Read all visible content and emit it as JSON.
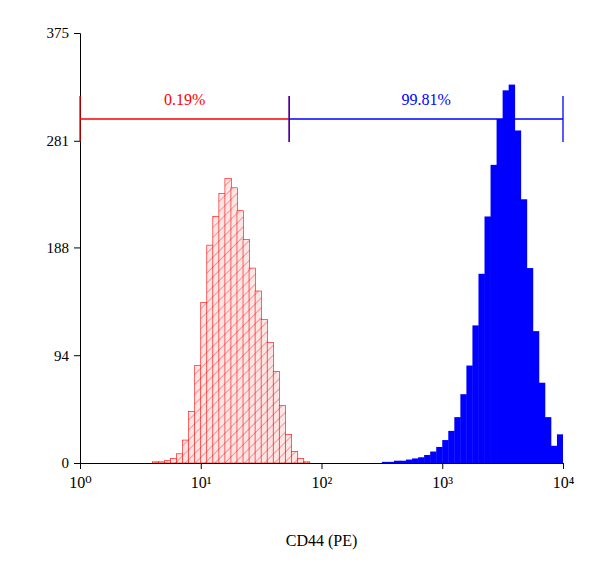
{
  "chart_data": {
    "type": "histogram",
    "x_label": "CD44 (PE)",
    "log": "x",
    "grid": false,
    "xlim": [
      1,
      10000
    ],
    "xticks": [
      {
        "value": 1,
        "label": "10⁰"
      },
      {
        "value": 10,
        "label": "10¹"
      },
      {
        "value": 100,
        "label": "10²"
      },
      {
        "value": 1000,
        "label": "10³"
      },
      {
        "value": 10000,
        "label": "10⁴"
      }
    ],
    "ylim": [
      0,
      375
    ],
    "yticks": [
      0,
      94,
      188,
      281,
      375
    ],
    "bins": [
      1,
      1.122,
      1.259,
      1.413,
      1.585,
      1.778,
      1.995,
      2.239,
      2.512,
      2.818,
      3.162,
      3.548,
      3.981,
      4.467,
      5.012,
      5.623,
      6.31,
      7.079,
      7.943,
      8.913,
      10,
      11.22,
      12.59,
      14.13,
      15.85,
      17.78,
      19.95,
      22.39,
      25.12,
      28.18,
      31.62,
      35.48,
      39.81,
      44.67,
      50.12,
      56.23,
      63.1,
      70.79,
      79.43,
      89.13,
      100,
      112.2,
      125.9,
      141.3,
      158.5,
      177.8,
      199.5,
      223.9,
      251.2,
      281.8,
      316.2,
      354.8,
      398.1,
      446.7,
      501.2,
      562.3,
      631,
      707.9,
      794.3,
      891.3,
      1000,
      1122,
      1259,
      1413,
      1585,
      1778,
      1995,
      2239,
      2512,
      2818,
      3162,
      3548,
      3981,
      4467,
      5012,
      5623,
      6310,
      7079,
      7943,
      8913,
      10000
    ],
    "series": [
      {
        "color": "#ff0000",
        "marker": "hatch",
        "values": [
          0,
          0,
          0,
          0,
          0,
          0,
          0,
          0,
          0,
          0,
          0,
          0,
          1,
          1,
          2,
          4,
          8,
          20,
          45,
          85,
          140,
          190,
          215,
          235,
          248,
          240,
          220,
          195,
          170,
          150,
          125,
          105,
          80,
          50,
          25,
          10,
          4,
          1,
          0,
          0,
          0,
          0,
          0,
          0,
          0,
          0,
          0,
          0,
          0,
          0,
          0,
          0,
          0,
          0,
          0,
          0,
          0,
          0,
          0,
          0,
          0,
          0,
          0,
          0,
          0,
          0,
          0,
          0,
          0,
          0,
          0,
          0,
          0,
          0,
          0,
          0,
          0,
          0,
          0,
          0
        ]
      },
      {
        "color": "#0000ff",
        "marker": "solid",
        "values": [
          0,
          0,
          0,
          0,
          0,
          0,
          0,
          0,
          0,
          0,
          0,
          0,
          0,
          0,
          0,
          0,
          0,
          0,
          0,
          0,
          0,
          0,
          0,
          0,
          0,
          0,
          0,
          0,
          0,
          0,
          0,
          0,
          0,
          0,
          0,
          0,
          0,
          0,
          0,
          0,
          0,
          0,
          0,
          0,
          0,
          0,
          0,
          0,
          0,
          0,
          1,
          1,
          2,
          2,
          3,
          4,
          5,
          7,
          10,
          14,
          20,
          28,
          40,
          60,
          85,
          120,
          165,
          215,
          260,
          300,
          325,
          330,
          290,
          230,
          170,
          115,
          70,
          40,
          15,
          25
        ]
      }
    ],
    "annotations": [
      {
        "text": "0.19%",
        "x": [
          1,
          54
        ],
        "y": 300,
        "color": "#ff0000"
      },
      {
        "text": "99.81%",
        "x": [
          54,
          10000
        ],
        "y": 300,
        "color": "#0000ff"
      }
    ]
  }
}
